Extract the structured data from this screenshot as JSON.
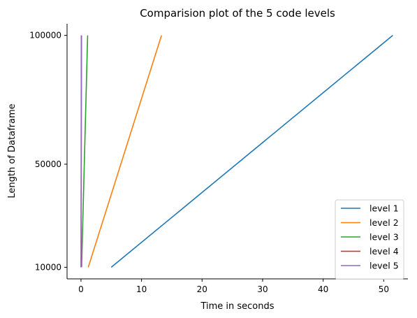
{
  "chart_data": {
    "type": "line",
    "title": "Comparision plot of the 5 code levels",
    "xlabel": "Time in seconds",
    "ylabel": "Length of Dataframe",
    "xlim": [
      -2.3,
      54.0
    ],
    "ylim": [
      5500,
      104500
    ],
    "xticks": [
      0,
      10,
      20,
      30,
      40,
      50
    ],
    "yticks": [
      10000,
      50000,
      100000
    ],
    "grid": false,
    "legend_position": "lower-right",
    "series": [
      {
        "name": "level 1",
        "color": "#1f77b4",
        "x": [
          5.0,
          51.5
        ],
        "y": [
          10000,
          100000
        ]
      },
      {
        "name": "level 2",
        "color": "#ff7f0e",
        "x": [
          1.2,
          13.3
        ],
        "y": [
          10000,
          100000
        ]
      },
      {
        "name": "level 3",
        "color": "#2ca02c",
        "x": [
          0.1,
          1.1
        ],
        "y": [
          10000,
          100000
        ]
      },
      {
        "name": "level 4",
        "color": "#d62728",
        "x": [
          0.02,
          0.08
        ],
        "y": [
          10000,
          100000
        ]
      },
      {
        "name": "level 5",
        "color": "#9467bd",
        "x": [
          0.01,
          0.05
        ],
        "y": [
          10000,
          100000
        ]
      }
    ]
  }
}
